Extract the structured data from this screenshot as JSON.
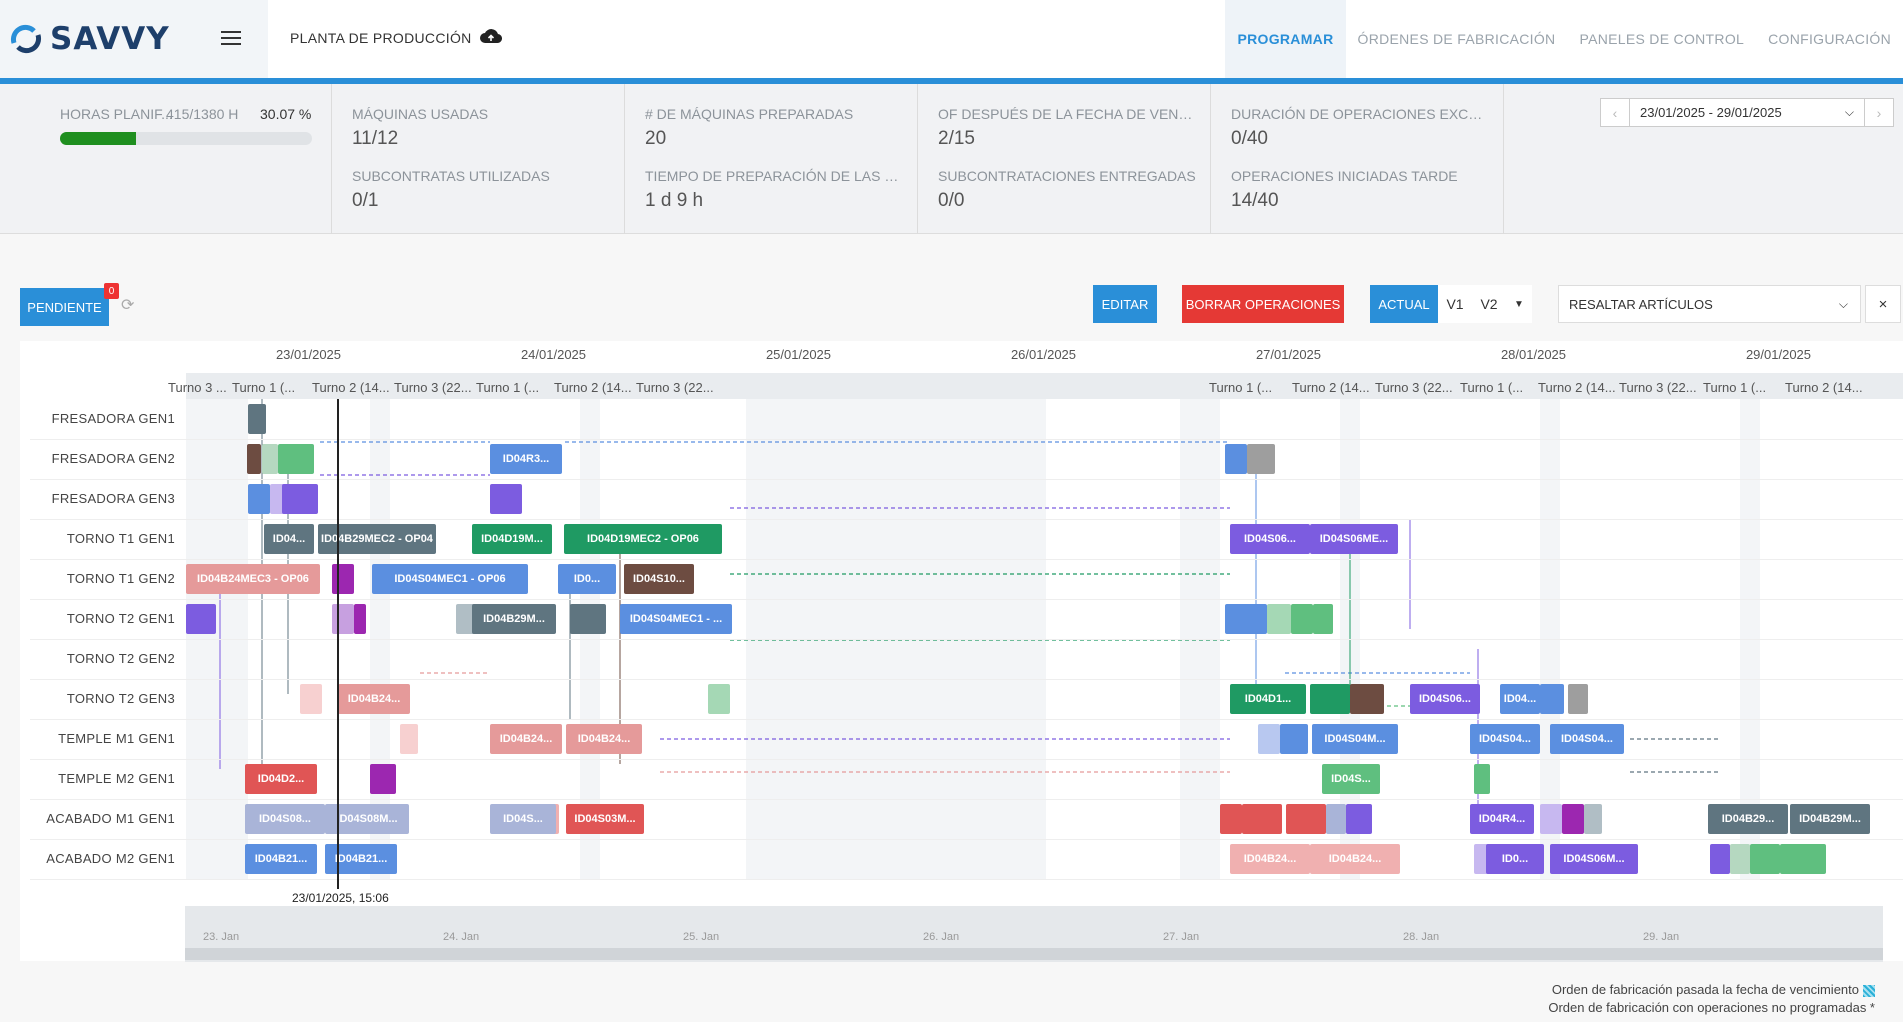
{
  "app": {
    "brand": "SAVVY",
    "plant_title": "PLANTA DE PRODUCCIÓN"
  },
  "nav": [
    {
      "label": "PROGRAMAR",
      "active": true
    },
    {
      "label": "ÓRDENES DE FABRICACIÓN",
      "active": false
    },
    {
      "label": "PANELES DE CONTROL",
      "active": false
    },
    {
      "label": "CONFIGURACIÓN",
      "active": false
    }
  ],
  "kpi": {
    "hours_label": "HORAS PLANIF...",
    "hours_value": "415/1380 H",
    "hours_percent": "30.07 %",
    "hours_fraction": 0.3007,
    "machines_used_label": "MÁQUINAS USADAS",
    "machines_used_value": "11/12",
    "subcontracts_used_label": "SUBCONTRATAS UTILIZADAS",
    "subcontracts_used_value": "0/1",
    "machines_prepared_label": "# DE MÁQUINAS PREPARADAS",
    "machines_prepared_value": "20",
    "prep_time_label": "TIEMPO DE PREPARACIÓN DE LAS M...",
    "prep_time_value": "1 d 9 h",
    "of_after_due_label": "OF DESPUÉS DE LA FECHA DE VENCI...",
    "of_after_due_value": "2/15",
    "subcontracts_delivered_label": "SUBCONTRATACIONES ENTREGADAS",
    "subcontracts_delivered_value": "0/0",
    "ops_exceeded_label": "DURACIÓN DE OPERACIONES EXCEDI...",
    "ops_exceeded_value": "0/40",
    "ops_late_label": "OPERACIONES INICIADAS TARDE",
    "ops_late_value": "14/40",
    "date_range": "23/01/2025 - 29/01/2025"
  },
  "toolbar": {
    "pending_label": "PENDIENTE",
    "pending_count": "0",
    "edit_label": "EDITAR",
    "delete_label": "BORRAR OPERACIONES",
    "actual_label": "ACTUAL",
    "v1_label": "V1",
    "v2_label": "V2",
    "highlight_placeholder": "RESALTAR ARTÍCULOS",
    "clear_label": "×"
  },
  "gantt": {
    "days": [
      "23/01/2025",
      "24/01/2025",
      "25/01/2025",
      "26/01/2025",
      "27/01/2025",
      "28/01/2025",
      "29/01/2025"
    ],
    "shifts": [
      "Turno 3 ...",
      "Turno 1 (...",
      "Turno 2 (14...",
      "Turno 3 (22...",
      "Turno 1 (...",
      "Turno 2 (14...",
      "Turno 3 (22...",
      "Turno 1 (...",
      "Turno 2 (14...",
      "Turno 3 (22...",
      "Turno 1 (...",
      "Turno 2 (14...",
      "Turno 3 (22...",
      "Turno 1 (...",
      "Turno 2 (14..."
    ],
    "resources": [
      "FRESADORA GEN1",
      "FRESADORA GEN2",
      "FRESADORA GEN3",
      "TORNO T1 GEN1",
      "TORNO T1 GEN2",
      "TORNO T2 GEN1",
      "TORNO T2 GEN2",
      "TORNO T2 GEN3",
      "TEMPLE M1 GEN1",
      "TEMPLE M2 GEN1",
      "ACABADO M1 GEN1",
      "ACABADO M2 GEN1"
    ],
    "now_label": "23/01/2025, 15:06",
    "navigator_labels": [
      "23. Jan",
      "24. Jan",
      "25. Jan",
      "26. Jan",
      "27. Jan",
      "28. Jan",
      "29. Jan"
    ],
    "bars": [
      {
        "row": 1,
        "label": "ID04R3...",
        "color": "#5b8fe0"
      },
      {
        "row": 3,
        "label": "ID04...",
        "color": "#5f7580"
      },
      {
        "row": 3,
        "label": "ID04B29MEC2 - OP04",
        "color": "#5f7580"
      },
      {
        "row": 3,
        "label": "ID04D19M...",
        "color": "#1f9a63"
      },
      {
        "row": 3,
        "label": "ID04D19MEC2 - OP06",
        "color": "#1f9a63"
      },
      {
        "row": 3,
        "label": "ID04S06...",
        "color": "#7c5ce0"
      },
      {
        "row": 3,
        "label": "ID04S06ME...",
        "color": "#7c5ce0"
      },
      {
        "row": 4,
        "label": "ID04B24MEC3 - OP06",
        "color": "#e59a9a"
      },
      {
        "row": 4,
        "label": "ID04S04MEC1 - OP06",
        "color": "#5b8fe0"
      },
      {
        "row": 4,
        "label": "ID0...",
        "color": "#5b8fe0"
      },
      {
        "row": 4,
        "label": "ID04S10...",
        "color": "#6d4c41"
      },
      {
        "row": 5,
        "label": "ID04B29M...",
        "color": "#5f7580"
      },
      {
        "row": 5,
        "label": "ID04S04MEC1 - ...",
        "color": "#5b8fe0"
      },
      {
        "row": 7,
        "label": "ID04B24...",
        "color": "#e59a9a"
      },
      {
        "row": 7,
        "label": "ID04D1...",
        "color": "#1f9a63"
      },
      {
        "row": 7,
        "label": "ID04S06...",
        "color": "#7c5ce0"
      },
      {
        "row": 7,
        "label": "ID04...",
        "color": "#5b8fe0"
      },
      {
        "row": 8,
        "label": "ID04B24...",
        "color": "#e59a9a"
      },
      {
        "row": 8,
        "label": "ID04B24...",
        "color": "#e59a9a"
      },
      {
        "row": 8,
        "label": "ID04S04M...",
        "color": "#5b8fe0"
      },
      {
        "row": 8,
        "label": "ID04S04...",
        "color": "#5b8fe0"
      },
      {
        "row": 8,
        "label": "ID04S04...",
        "color": "#5b8fe0"
      },
      {
        "row": 9,
        "label": "ID04D2...",
        "color": "#e05555"
      },
      {
        "row": 9,
        "label": "ID04S...",
        "color": "#5fbf7f"
      },
      {
        "row": 10,
        "label": "ID04S08...",
        "color": "#a9b4d8"
      },
      {
        "row": 10,
        "label": "ID04S08M...",
        "color": "#a9b4d8"
      },
      {
        "row": 10,
        "label": "ID04S...",
        "color": "#a9b4d8"
      },
      {
        "row": 10,
        "label": "ID04S03M...",
        "color": "#e05555"
      },
      {
        "row": 10,
        "label": "ID04R4...",
        "color": "#7c5ce0"
      },
      {
        "row": 10,
        "label": "ID04B29...",
        "color": "#5f7580"
      },
      {
        "row": 10,
        "label": "ID04B29M...",
        "color": "#5f7580"
      },
      {
        "row": 11,
        "label": "ID04B21...",
        "color": "#5b8fe0"
      },
      {
        "row": 11,
        "label": "ID04B21...",
        "color": "#5b8fe0"
      },
      {
        "row": 11,
        "label": "ID04B24...",
        "color": "#f0b0b0"
      },
      {
        "row": 11,
        "label": "ID04B24...",
        "color": "#f0b0b0"
      },
      {
        "row": 11,
        "label": "ID0...",
        "color": "#7c5ce0"
      },
      {
        "row": 11,
        "label": "ID04S06M...",
        "color": "#7c5ce0"
      }
    ]
  },
  "legend": {
    "line1": "Orden de fabricación pasada la fecha de vencimiento",
    "line2": "Orden de fabricación con operaciones no programadas *"
  }
}
